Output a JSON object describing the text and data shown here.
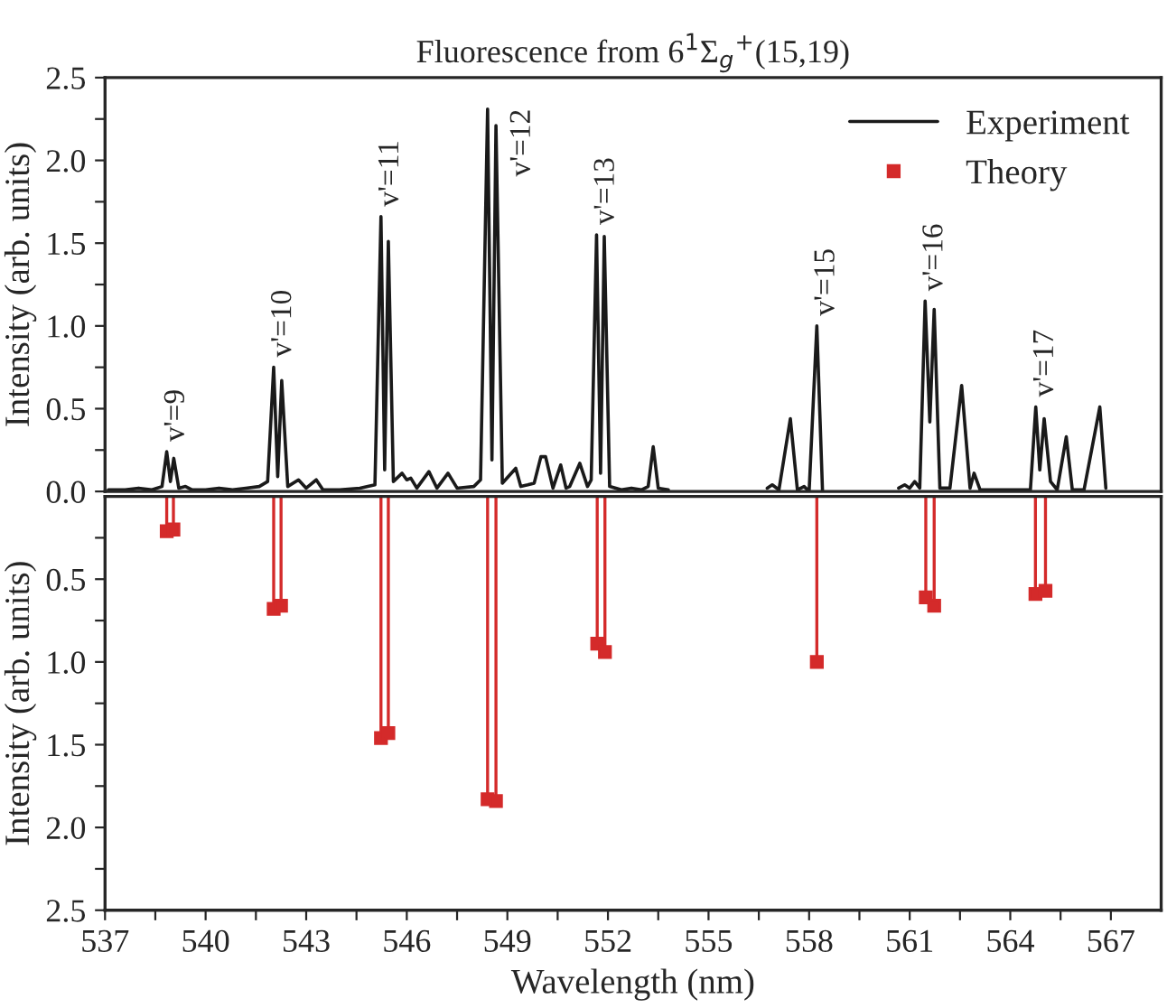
{
  "chart_data": [
    {
      "type": "line",
      "title": "Fluorescence from 6$^{1}$Σ$_{g}$$^{+}$(15,19)",
      "ylabel": "Intensity (arb. units)",
      "xlim": [
        537,
        568.5
      ],
      "ylim": [
        0,
        2.5
      ],
      "yticks": [
        {
          "value": 0,
          "label": "0.0"
        },
        {
          "value": 0.25,
          "label": null
        },
        0.5,
        {
          "value": 0.75,
          "label": null
        },
        {
          "value": 1,
          "label": "1.0"
        },
        {
          "value": 1.25,
          "label": null
        },
        1.5,
        {
          "value": 1.75,
          "label": null
        },
        {
          "value": 2,
          "label": "2.0"
        },
        {
          "value": 2.25,
          "label": null
        },
        2.5
      ],
      "tick_labels": "y",
      "legend": "top right",
      "grid": false,
      "series": [
        {
          "name": "Experiment",
          "color": "#1a1a1a",
          "x": [
            537.1,
            537.6,
            538.0,
            538.4,
            538.7,
            538.84,
            538.95,
            539.05,
            539.2,
            539.4,
            539.6,
            540.0,
            540.4,
            540.8,
            541.2,
            541.6,
            541.85,
            542.03,
            542.15,
            542.27,
            542.45,
            542.77,
            543.0,
            543.3,
            543.5,
            544.0,
            544.6,
            545.05,
            545.23,
            545.34,
            545.45,
            545.6,
            545.86,
            546.0,
            546.12,
            546.3,
            546.66,
            546.9,
            547.23,
            547.5,
            548.0,
            548.2,
            548.41,
            548.54,
            548.66,
            548.85,
            549.25,
            549.4,
            549.61,
            549.8,
            550.0,
            550.14,
            550.36,
            550.59,
            550.75,
            550.86,
            551.16,
            551.39,
            551.5,
            551.66,
            551.78,
            551.89,
            552.05,
            552.4,
            552.7,
            553.0,
            553.2,
            553.35,
            553.5,
            553.8,
            555.0,
            556.75,
            556.9,
            557.1,
            557.44,
            557.65,
            557.85,
            558.0,
            558.23,
            558.4,
            559.5,
            560.67,
            560.85,
            561.0,
            561.15,
            561.3,
            561.46,
            561.6,
            561.73,
            561.9,
            562.2,
            562.55,
            562.8,
            562.92,
            563.1,
            564.0,
            564.6,
            564.76,
            564.88,
            565.01,
            565.2,
            565.4,
            565.67,
            565.85,
            566.2,
            566.67,
            566.85
          ],
          "values": [
            0.01,
            0.01,
            0.02,
            0.01,
            0.03,
            0.24,
            0.06,
            0.2,
            0.02,
            0.03,
            0.01,
            0.01,
            0.02,
            0.01,
            0.02,
            0.03,
            0.06,
            0.75,
            0.09,
            0.67,
            0.03,
            0.07,
            0.02,
            0.07,
            0.01,
            0.01,
            0.02,
            0.04,
            1.66,
            0.13,
            1.51,
            0.06,
            0.11,
            0.07,
            0.08,
            0.02,
            0.12,
            0.02,
            0.11,
            0.02,
            0.03,
            0.07,
            2.31,
            0.19,
            2.21,
            0.05,
            0.14,
            0.03,
            0.04,
            0.05,
            0.21,
            0.21,
            0.02,
            0.16,
            0.02,
            0.03,
            0.17,
            0.03,
            0.07,
            1.55,
            0.11,
            1.54,
            0.03,
            0.01,
            0.02,
            0.01,
            0.03,
            0.27,
            0.02,
            0.01,
            null,
            0.02,
            0.04,
            0.01,
            0.44,
            0.01,
            0.03,
            0.0,
            1.0,
            0.0,
            null,
            0.02,
            0.04,
            0.02,
            0.06,
            0.02,
            1.15,
            0.42,
            1.1,
            0.02,
            0.02,
            0.64,
            0.02,
            0.11,
            0.01,
            0.01,
            0.01,
            0.51,
            0.13,
            0.44,
            0.06,
            0.01,
            0.33,
            0.01,
            0.01,
            0.51,
            0.02
          ]
        }
      ],
      "annotations": [
        {
          "text": "v'=9",
          "x": 538.84,
          "y": 0.24
        },
        {
          "text": "v'=10",
          "x": 542.03,
          "y": 0.75
        },
        {
          "text": "v'=11",
          "x": 545.23,
          "y": 1.66
        },
        {
          "text": "v'=12",
          "x": 548.41,
          "y": 2.31
        },
        {
          "text": "v'=13",
          "x": 551.66,
          "y": 1.55
        },
        {
          "text": "v'=15",
          "x": 558.23,
          "y": 1.0
        },
        {
          "text": "v'=16",
          "x": 561.46,
          "y": 1.15
        },
        {
          "text": "v'=17",
          "x": 564.76,
          "y": 0.51
        }
      ]
    },
    {
      "type": "lollipop",
      "xlabel": "Wavelength (nm)",
      "ylabel": "Intensity (arb. units)",
      "xlim": [
        537,
        568.5
      ],
      "ylim": [
        2.5,
        0
      ],
      "xticks": [
        537,
        {
          "value": 538.5,
          "label": null
        },
        540,
        {
          "value": 541.5,
          "label": null
        },
        543,
        {
          "value": 544.5,
          "label": null
        },
        546,
        {
          "value": 547.5,
          "label": null
        },
        549,
        {
          "value": 550.5,
          "label": null
        },
        552,
        {
          "value": 553.5,
          "label": null
        },
        555,
        {
          "value": 556.5,
          "label": null
        },
        558,
        {
          "value": 559.5,
          "label": null
        },
        561,
        {
          "value": 562.5,
          "label": null
        },
        564,
        {
          "value": 565.5,
          "label": null
        },
        567
      ],
      "yticks": [
        {
          "value": 0.25,
          "label": null
        },
        0.5,
        {
          "value": 0.75,
          "label": null
        },
        {
          "value": 1,
          "label": "1.0"
        },
        {
          "value": 1.25,
          "label": null
        },
        1.5,
        {
          "value": 1.75,
          "label": null
        },
        {
          "value": 2,
          "label": "2.0"
        },
        {
          "value": 2.25,
          "label": null
        },
        2.5
      ],
      "marker": "square",
      "grid": false,
      "series": [
        {
          "name": "Theory",
          "color": "#d42a2a",
          "x": [
            538.84,
            539.04,
            542.03,
            542.25,
            545.23,
            545.45,
            548.41,
            548.66,
            551.68,
            551.91,
            558.23,
            561.48,
            561.73,
            564.75,
            565.05
          ],
          "values": [
            0.21,
            0.2,
            0.68,
            0.66,
            1.46,
            1.43,
            1.83,
            1.84,
            0.89,
            0.94,
            1.0,
            0.61,
            0.66,
            0.59,
            0.57
          ]
        }
      ]
    }
  ]
}
